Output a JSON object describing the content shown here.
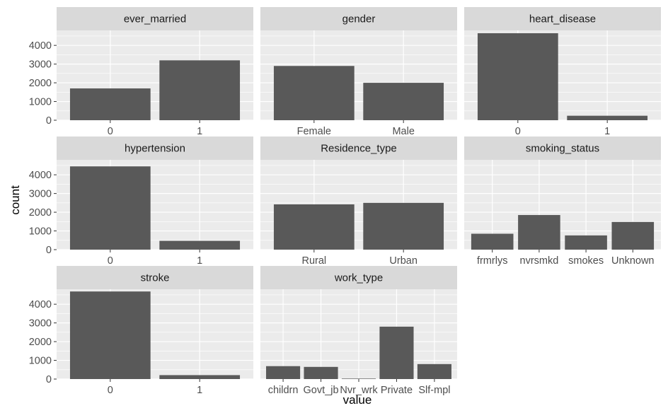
{
  "chart_data": {
    "type": "bar",
    "facet_by": "variable",
    "xlabel": "value",
    "ylabel": "count",
    "ylim": [
      0,
      4800
    ],
    "yticks": [
      0,
      1000,
      2000,
      3000,
      4000
    ],
    "grid": true,
    "scales": "free_x",
    "colors": {
      "bar": "#595959",
      "panel_bg": "#ebebeb",
      "strip_bg": "#d9d9d9",
      "grid": "#ffffff"
    },
    "facets": [
      {
        "title": "ever_married",
        "categories": [
          "0",
          "1"
        ],
        "values": [
          1700,
          3200
        ]
      },
      {
        "title": "gender",
        "categories": [
          "Female",
          "Male"
        ],
        "values": [
          2900,
          2000
        ]
      },
      {
        "title": "heart_disease",
        "categories": [
          "0",
          "1"
        ],
        "values": [
          4650,
          240
        ]
      },
      {
        "title": "hypertension",
        "categories": [
          "0",
          "1"
        ],
        "values": [
          4450,
          470
        ]
      },
      {
        "title": "Residence_type",
        "categories": [
          "Rural",
          "Urban"
        ],
        "values": [
          2420,
          2500
        ]
      },
      {
        "title": "smoking_status",
        "categories": [
          "frmrlys",
          "nvrsmkd",
          "smokes",
          "Unknown"
        ],
        "values": [
          850,
          1850,
          760,
          1480
        ]
      },
      {
        "title": "stroke",
        "categories": [
          "0",
          "1"
        ],
        "values": [
          4680,
          210
        ]
      },
      {
        "title": "work_type",
        "categories": [
          "childrn",
          "Govt_jb",
          "Nvr_wrk",
          "Private",
          "Slf-mpl"
        ],
        "values": [
          690,
          650,
          25,
          2800,
          800
        ]
      }
    ]
  }
}
